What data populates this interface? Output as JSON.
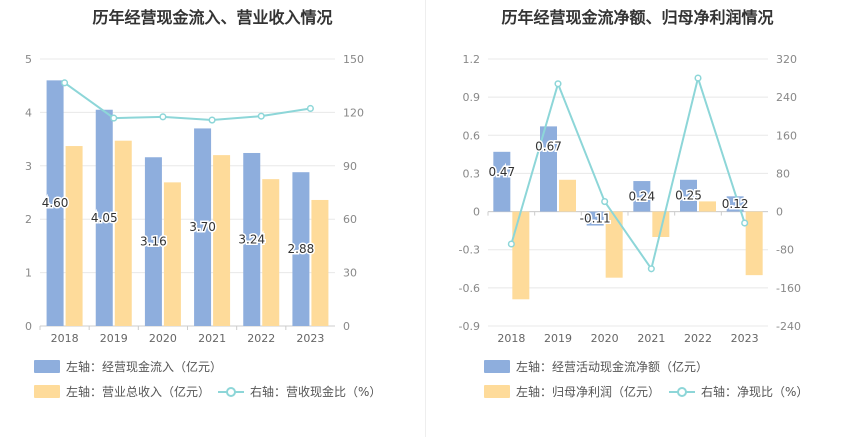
{
  "chart_data": [
    {
      "type": "bar",
      "title": "历年经营现金流入、营业收入情况",
      "categories": [
        "2018",
        "2019",
        "2020",
        "2021",
        "2022",
        "2023"
      ],
      "series": [
        {
          "name": "左轴：经营现金流入（亿元）",
          "axis": "left",
          "type": "bar",
          "color": "#8eaedd",
          "values": [
            4.6,
            4.05,
            3.16,
            3.7,
            3.24,
            2.88
          ],
          "labels": [
            "4.60",
            "4.05",
            "3.16",
            "3.70",
            "3.24",
            "2.88"
          ]
        },
        {
          "name": "左轴：营业总收入（亿元）",
          "axis": "left",
          "type": "bar",
          "color": "#fedb9a",
          "values": [
            3.37,
            3.47,
            2.69,
            3.2,
            2.75,
            2.36
          ]
        },
        {
          "name": "右轴：营收现金比（%）",
          "axis": "right",
          "type": "line",
          "color": "#8dd6d8",
          "values": [
            136.6,
            116.8,
            117.5,
            115.7,
            117.9,
            122.2
          ]
        }
      ],
      "left_axis": {
        "ylim": [
          0,
          5
        ],
        "ticks": [
          "0",
          "1",
          "2",
          "3",
          "4",
          "5"
        ]
      },
      "right_axis": {
        "ylim": [
          0,
          150
        ],
        "ticks": [
          "0",
          "30",
          "60",
          "90",
          "120",
          "150"
        ]
      },
      "legend_position": "bottom"
    },
    {
      "type": "bar",
      "title": "历年经营现金流净额、归母净利润情况",
      "categories": [
        "2018",
        "2019",
        "2020",
        "2021",
        "2022",
        "2023"
      ],
      "series": [
        {
          "name": "左轴：经营活动现金流净额（亿元）",
          "axis": "left",
          "type": "bar",
          "color": "#8eaedd",
          "values": [
            0.47,
            0.67,
            -0.11,
            0.24,
            0.25,
            0.12
          ],
          "labels": [
            "0.47",
            "0.67",
            "-0.11",
            "0.24",
            "0.25",
            "0.12"
          ]
        },
        {
          "name": "左轴：归母净利润（亿元）",
          "axis": "left",
          "type": "bar",
          "color": "#fedb9a",
          "values": [
            -0.69,
            0.25,
            -0.52,
            -0.2,
            0.08,
            -0.5
          ]
        },
        {
          "name": "右轴：净现比（%）",
          "axis": "right",
          "type": "line",
          "color": "#8dd6d8",
          "values": [
            -68,
            268,
            21,
            -120,
            280,
            -24
          ]
        }
      ],
      "left_axis": {
        "ylim": [
          -0.9,
          1.2
        ],
        "ticks": [
          "-0.9",
          "-0.6",
          "-0.3",
          "0",
          "0.3",
          "0.6",
          "0.9",
          "1.2"
        ]
      },
      "right_axis": {
        "ylim": [
          -240,
          320
        ],
        "ticks": [
          "-240",
          "-160",
          "-80",
          "0",
          "80",
          "160",
          "240",
          "320"
        ]
      },
      "legend_position": "bottom"
    }
  ]
}
